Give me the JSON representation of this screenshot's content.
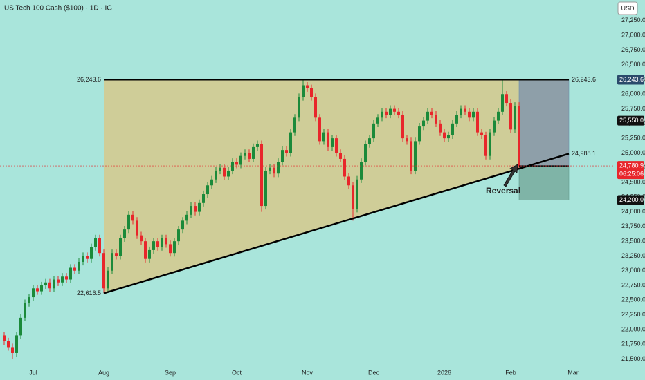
{
  "chart_data": {
    "type": "candlestick",
    "title": "US Tech 100 Cash ($100) · 1D · IG",
    "currency": "USD",
    "up_color": "#1b8a3a",
    "down_color": "#e8262b",
    "open": [
      21900,
      21800,
      21700,
      21600,
      21900,
      22200,
      22450,
      22550,
      22700,
      22650,
      22750,
      22800,
      22700,
      22850,
      22800,
      22900,
      22850,
      23050,
      23000,
      23150,
      23250,
      23200,
      23400,
      23550,
      23300,
      22700,
      23000,
      23300,
      23250,
      23550,
      23700,
      23950,
      23850,
      23600,
      23500,
      23200,
      23350,
      23500,
      23400,
      23550,
      23450,
      23300,
      23500,
      23700,
      23850,
      23950,
      24100,
      24000,
      24150,
      24300,
      24450,
      24550,
      24700,
      24750,
      24600,
      24700,
      24850,
      24800,
      24950,
      25000,
      24900,
      25100,
      25150,
      24100,
      24700,
      24750,
      24650,
      24850,
      25050,
      25000,
      25350,
      25600,
      25950,
      26150,
      26100,
      25950,
      25600,
      25200,
      25350,
      25100,
      25250,
      25000,
      24900,
      24600,
      24450,
      24050,
      24550,
      24850,
      25150,
      25250,
      25500,
      25600,
      25700,
      25650,
      25750,
      25700,
      25650,
      25250,
      25200,
      24700,
      25200,
      25450,
      25550,
      25700,
      25650,
      25500,
      25350,
      25250,
      25300,
      25500,
      25650,
      25750,
      25700,
      25600,
      25700,
      25350,
      25300,
      24950,
      25350,
      25550,
      25700,
      26000,
      25850,
      25400,
      25800
    ],
    "high": [
      21960,
      21860,
      21760,
      21960,
      22260,
      22510,
      22610,
      22760,
      22760,
      22810,
      22860,
      22860,
      22910,
      22910,
      22960,
      22960,
      23110,
      23110,
      23210,
      23310,
      23310,
      23460,
      23610,
      23610,
      23360,
      23060,
      23360,
      23360,
      23610,
      23760,
      24010,
      24010,
      23910,
      23660,
      23560,
      23410,
      23560,
      23560,
      23610,
      23610,
      23510,
      23560,
      23760,
      23910,
      24010,
      24160,
      24160,
      24210,
      24360,
      24510,
      24610,
      24760,
      24810,
      24810,
      24760,
      24910,
      24910,
      25010,
      25060,
      25060,
      25160,
      25210,
      25210,
      24760,
      24810,
      24810,
      24910,
      25110,
      25110,
      25410,
      25660,
      26010,
      26243.6,
      26210,
      26160,
      26010,
      25660,
      25410,
      25410,
      25310,
      25310,
      25060,
      24960,
      24660,
      24510,
      24610,
      24910,
      25210,
      25310,
      25560,
      25660,
      25760,
      25760,
      25810,
      25810,
      25760,
      25710,
      25310,
      25260,
      25260,
      25510,
      25610,
      25760,
      25760,
      25710,
      25560,
      25410,
      25360,
      25560,
      25710,
      25810,
      25810,
      25760,
      25760,
      25760,
      25410,
      25360,
      25410,
      25610,
      25760,
      26243.6,
      26060,
      25910,
      25860,
      25860
    ],
    "low": [
      21740,
      21640,
      21500,
      21540,
      21840,
      22140,
      22390,
      22490,
      22590,
      22590,
      22690,
      22640,
      22640,
      22740,
      22740,
      22790,
      22790,
      22940,
      22940,
      23090,
      23140,
      23140,
      23340,
      23240,
      22616.5,
      22640,
      22940,
      23190,
      23190,
      23490,
      23640,
      23790,
      23540,
      23440,
      23140,
      23140,
      23290,
      23340,
      23340,
      23390,
      23240,
      23240,
      23440,
      23640,
      23790,
      23890,
      23940,
      23940,
      24090,
      24240,
      24390,
      24490,
      24640,
      24540,
      24540,
      24640,
      24740,
      24740,
      24890,
      24840,
      24840,
      25040,
      24000,
      24040,
      24640,
      24590,
      24590,
      24790,
      24940,
      24940,
      25290,
      25540,
      25890,
      26040,
      25890,
      25540,
      25140,
      25140,
      25040,
      25040,
      24940,
      24840,
      24540,
      24390,
      23850,
      23990,
      24490,
      24790,
      25090,
      25190,
      25440,
      25540,
      25590,
      25590,
      25640,
      25590,
      25190,
      25140,
      24640,
      24640,
      25140,
      25390,
      25490,
      25590,
      25440,
      25290,
      25190,
      25190,
      25240,
      25440,
      25590,
      25640,
      25540,
      25540,
      25290,
      25240,
      24890,
      24890,
      25290,
      25490,
      25640,
      25790,
      25340,
      25340,
      24720
    ],
    "close": [
      21800,
      21700,
      21600,
      21900,
      22200,
      22450,
      22550,
      22700,
      22650,
      22750,
      22800,
      22700,
      22850,
      22800,
      22900,
      22850,
      23050,
      23000,
      23150,
      23250,
      23200,
      23400,
      23550,
      23300,
      22700,
      23000,
      23300,
      23250,
      23550,
      23700,
      23950,
      23850,
      23600,
      23500,
      23200,
      23350,
      23500,
      23400,
      23550,
      23450,
      23300,
      23500,
      23700,
      23850,
      23950,
      24100,
      24000,
      24150,
      24300,
      24450,
      24550,
      24700,
      24750,
      24600,
      24700,
      24850,
      24800,
      24950,
      25000,
      24900,
      25100,
      25150,
      24100,
      24700,
      24750,
      24650,
      24850,
      25050,
      25000,
      25350,
      25600,
      25950,
      26150,
      26100,
      25950,
      25600,
      25200,
      25350,
      25100,
      25250,
      25000,
      24900,
      24600,
      24450,
      24050,
      24550,
      24850,
      25150,
      25250,
      25500,
      25600,
      25700,
      25650,
      25750,
      25700,
      25650,
      25250,
      25200,
      24700,
      25200,
      25450,
      25550,
      25700,
      25650,
      25500,
      25350,
      25250,
      25300,
      25500,
      25650,
      25750,
      25700,
      25600,
      25700,
      25350,
      25300,
      24950,
      25350,
      25550,
      25700,
      26000,
      25850,
      25400,
      25800,
      24780.9
    ],
    "xlim": [
      -1,
      147
    ],
    "xticks": [
      {
        "value": 7,
        "label": "Jul"
      },
      {
        "value": 24,
        "label": "Aug"
      },
      {
        "value": 40,
        "label": "Sep"
      },
      {
        "value": 56,
        "label": "Oct"
      },
      {
        "value": 73,
        "label": "Nov"
      },
      {
        "value": 89,
        "label": "Dec"
      },
      {
        "value": 106,
        "label": "2026"
      },
      {
        "value": 122,
        "label": "Feb"
      },
      {
        "value": 137,
        "label": "Mar"
      }
    ],
    "ylim": [
      21400,
      27600
    ],
    "yticks": [
      {
        "value": 21500,
        "label": "21,500.0"
      },
      {
        "value": 21750,
        "label": "21,750.0"
      },
      {
        "value": 22000,
        "label": "22,000.0"
      },
      {
        "value": 22250,
        "label": "22,250.0"
      },
      {
        "value": 22500,
        "label": "22,500.0"
      },
      {
        "value": 22750,
        "label": "22,750.0"
      },
      {
        "value": 23000,
        "label": "23,000.0"
      },
      {
        "value": 23250,
        "label": "23,250.0"
      },
      {
        "value": 23500,
        "label": "23,500.0"
      },
      {
        "value": 23750,
        "label": "23,750.0"
      },
      {
        "value": 24000,
        "label": "24,000.0"
      },
      {
        "value": 24250,
        "label": "24,250.0"
      },
      {
        "value": 24500,
        "label": "24,500.0"
      },
      {
        "value": 24750,
        "label": "24,750.0"
      },
      {
        "value": 25000,
        "label": "25,000.0"
      },
      {
        "value": 25250,
        "label": "25,250.0"
      },
      {
        "value": 25500,
        "label": "25,500.0"
      },
      {
        "value": 25750,
        "label": "25,750.0"
      },
      {
        "value": 26000,
        "label": "26,000.0"
      },
      {
        "value": 26250,
        "label": "26,250.0"
      },
      {
        "value": 26500,
        "label": "26,500.0"
      },
      {
        "value": 26750,
        "label": "26,750.0"
      },
      {
        "value": 27000,
        "label": "27,000.0"
      },
      {
        "value": 27250,
        "label": "27,250.0"
      }
    ],
    "resistance": {
      "x": [
        24,
        136
      ],
      "value": 26243.6,
      "label": "26,243.6"
    },
    "support": {
      "x": [
        24,
        136
      ],
      "values": [
        22616.5,
        24988.1
      ],
      "labels": [
        "22,616.5",
        "24,988.1"
      ]
    },
    "position": {
      "x": [
        124,
        136
      ],
      "entry": 24780.9,
      "target": 24200
    },
    "annotation": "Reversal",
    "price_badges": [
      {
        "value": 26243.6,
        "label": "26,243.6",
        "color": "#2a4a6b"
      },
      {
        "value": 25550,
        "label": "25,550.0",
        "color": "#111111"
      },
      {
        "value": 24780.9,
        "label": "24,780.9",
        "sublabel": "06:25:06",
        "color": "#e8262b"
      },
      {
        "value": 24200,
        "label": "24,200.0",
        "color": "#111111"
      }
    ]
  }
}
